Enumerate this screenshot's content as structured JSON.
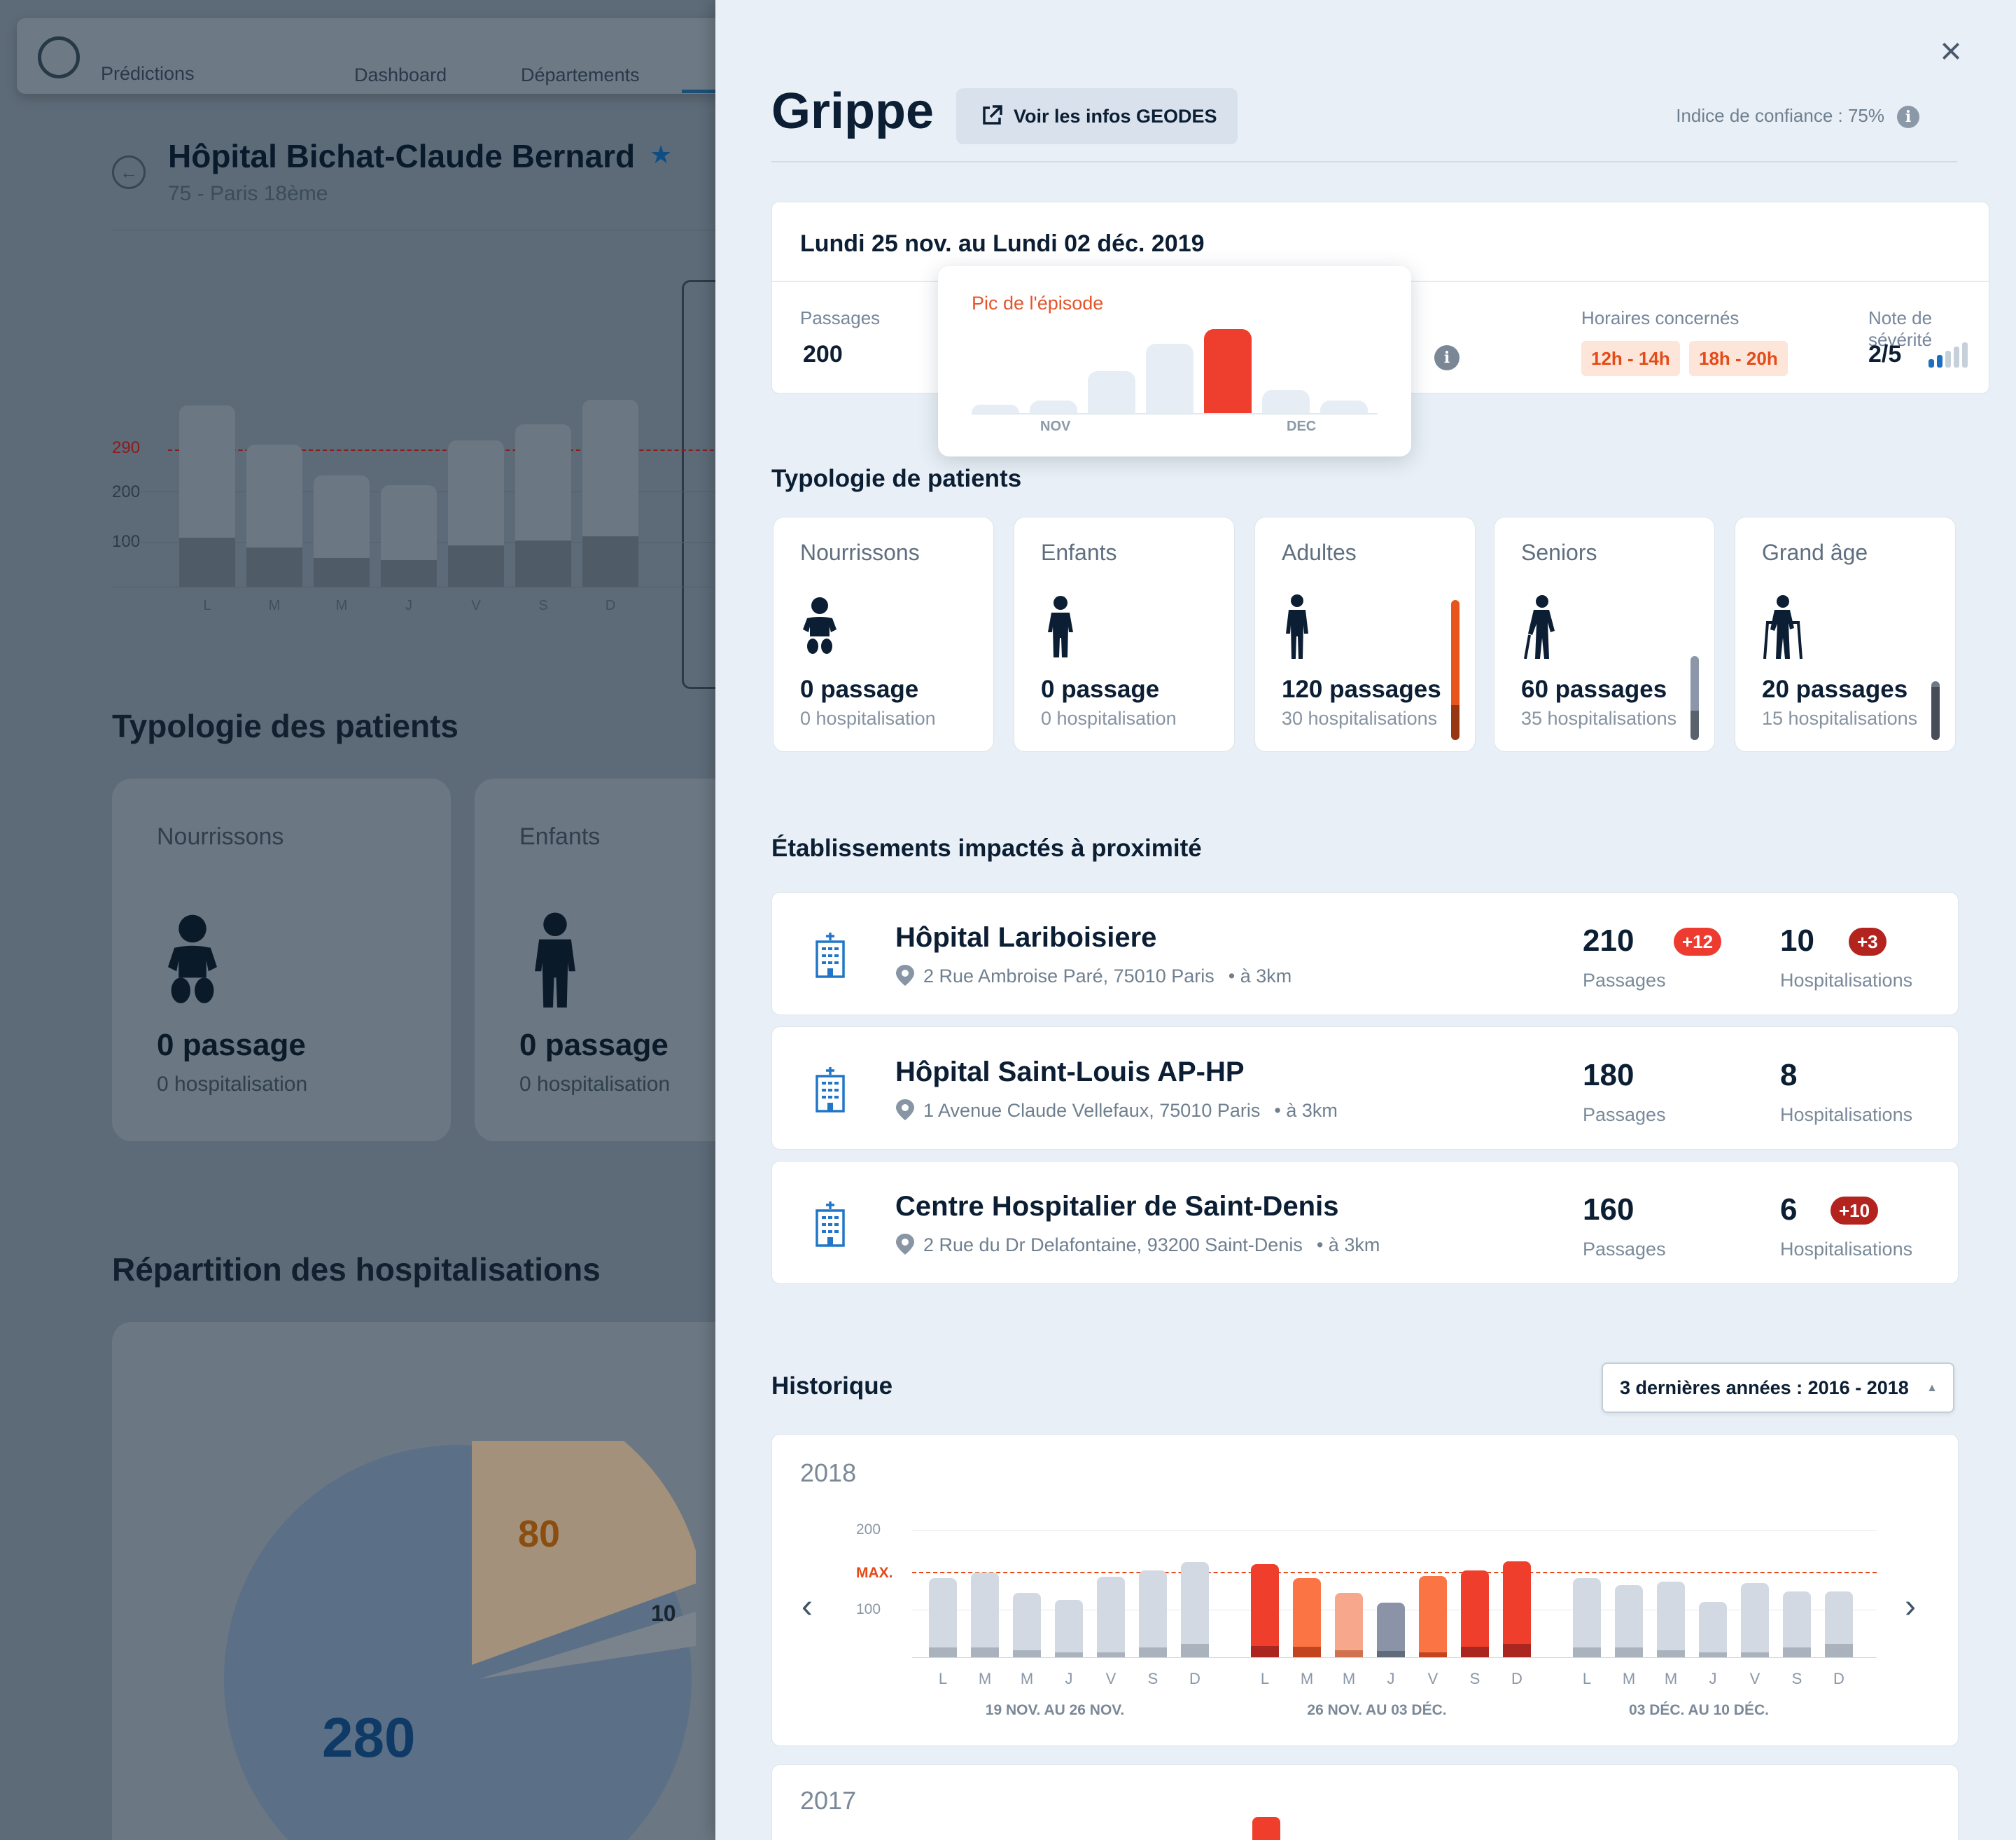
{
  "background": {
    "nav": {
      "brand": "Prédictions",
      "tabs": [
        "Dashboard",
        "Départements"
      ]
    },
    "hospital": {
      "title": "Hôpital Bichat-Claude Bernard",
      "subtitle": "75 - Paris 18ème"
    },
    "chart": {
      "type": "bar",
      "y_ticks": [
        "290",
        "200",
        "100"
      ],
      "days": [
        "L",
        "M",
        "M",
        "J",
        "V",
        "S",
        "D"
      ],
      "values": [
        316,
        248,
        194,
        177,
        255,
        283,
        326
      ],
      "hospitalisations": [
        85,
        68,
        50,
        46,
        72,
        80,
        88
      ],
      "threshold": 290
    },
    "section_patients": "Typologie des patients",
    "cards": [
      {
        "title": "Nourrissons",
        "passages": "0 passage",
        "hosp": "0 hospitalisation"
      },
      {
        "title": "Enfants",
        "passages": "0 passage",
        "hosp": "0 hospitalisation"
      }
    ],
    "section_hosp": "Répartition des hospitalisations",
    "pie": {
      "values": [
        "280",
        "80",
        "10"
      ]
    }
  },
  "panel": {
    "title": "Grippe",
    "geodes_label": "Voir les infos GEODES",
    "confidence": "Indice de confiance : 75%",
    "period": "Lundi 25 nov. au Lundi 02 déc. 2019",
    "passages_label": "Passages",
    "passages_value": "200",
    "hours_label": "Horaires concernés",
    "hours": [
      "12h - 14h",
      "18h - 20h"
    ],
    "severity_label": "Note de sévérité",
    "severity_value": "2/5",
    "severity_level": 2,
    "severity_max": 5,
    "peak_popup": {
      "title": "Pic de l'épisode",
      "months": [
        "NOV",
        "DEC"
      ],
      "values": [
        4,
        6,
        20,
        33,
        40,
        11,
        6
      ],
      "peak_index": 4
    },
    "typology_title": "Typologie de patients",
    "patients": [
      {
        "title": "Nourrissons",
        "passages": "0 passage",
        "hosp": "0 hospitalisation",
        "icon": "baby-icon",
        "level": 0,
        "share": 0
      },
      {
        "title": "Enfants",
        "passages": "0 passage",
        "hosp": "0 hospitalisation",
        "icon": "child-icon",
        "level": 0,
        "share": 0
      },
      {
        "title": "Adultes",
        "passages": "120 passages",
        "hosp": "30 hospitalisations",
        "icon": "adult-icon",
        "level": 1.0,
        "share": 0.25,
        "color": "#e9531c"
      },
      {
        "title": "Seniors",
        "passages": "60 passages",
        "hosp": "35 hospitalisations",
        "icon": "senior-icon",
        "level": 0.6,
        "share": 0.35,
        "color": "#8b97a8"
      },
      {
        "title": "Grand âge",
        "passages": "20 passages",
        "hosp": "15 hospitalisations",
        "icon": "elderly-walker-icon",
        "level": 0.42,
        "share": 0.9,
        "color": "#6e7887"
      }
    ],
    "nearby_title": "Établissements impactés à proximité",
    "establishments": [
      {
        "name": "Hôpital Lariboisiere",
        "address": "2 Rue Ambroise Paré, 75010 Paris",
        "distance": "• à 3km",
        "passages": "210",
        "passages_label": "Passages",
        "passages_delta": "+12",
        "hosp": "10",
        "hosp_label": "Hospitalisations",
        "hosp_delta": "+3"
      },
      {
        "name": "Hôpital Saint-Louis AP-HP",
        "address": "1 Avenue Claude Vellefaux, 75010 Paris",
        "distance": "• à 3km",
        "passages": "180",
        "passages_label": "Passages",
        "passages_delta": "",
        "hosp": "8",
        "hosp_label": "Hospitalisations",
        "hosp_delta": ""
      },
      {
        "name": "Centre Hospitalier de Saint-Denis",
        "address": "2 Rue du Dr Delafontaine, 93200 Saint-Denis",
        "distance": "• à 3km",
        "passages": "160",
        "passages_label": "Passages",
        "passages_delta": "",
        "hosp": "6",
        "hosp_label": "Hospitalisations",
        "hosp_delta": "+10"
      }
    ],
    "badge_colors": {
      "light": "#ee3b30",
      "dark": "#b3241f"
    },
    "history_title": "Historique",
    "history_select": "3 dernières années : 2016 - 2018",
    "history_year": "2018",
    "history_next_year": "2017"
  },
  "chart_data": {
    "type": "bar",
    "title": "2018",
    "y_ticks": [
      "200",
      "MAX.",
      "100"
    ],
    "max_value": 143,
    "ylim": [
      0,
      230
    ],
    "weeks": [
      {
        "label": "19 NOV. AU 26 NOV.",
        "days": [
          "L",
          "M",
          "M",
          "J",
          "V",
          "S",
          "D"
        ],
        "values": [
          198,
          211,
          160,
          144,
          201,
          216,
          238
        ],
        "hospitalisations": [
          25,
          25,
          17,
          13,
          13,
          25,
          33
        ],
        "colors": [
          "grey",
          "grey",
          "grey",
          "grey",
          "grey",
          "grey",
          "grey"
        ]
      },
      {
        "label": "26 NOV. AU 03 DÉC.",
        "days": [
          "L",
          "M",
          "M",
          "J",
          "V",
          "S",
          "D"
        ],
        "values": [
          233,
          197,
          160,
          137,
          203,
          217,
          239
        ],
        "hospitalisations": [
          28,
          27,
          17,
          15,
          13,
          27,
          33
        ],
        "colors": [
          "red",
          "orange",
          "salmon",
          "slate",
          "orange",
          "red",
          "red"
        ]
      },
      {
        "label": "03 DÉC. AU 10 DÉC.",
        "days": [
          "L",
          "M",
          "M",
          "J",
          "V",
          "S",
          "D"
        ],
        "values": [
          198,
          180,
          188,
          138,
          185,
          165,
          165
        ],
        "hospitalisations": [
          25,
          25,
          17,
          13,
          13,
          25,
          33
        ],
        "colors": [
          "grey",
          "grey",
          "grey",
          "grey",
          "grey",
          "grey",
          "grey"
        ]
      }
    ],
    "palette": {
      "grey": [
        "#d3d9e3",
        "#aab2be"
      ],
      "red": [
        "#ef3f2c",
        "#ab2620"
      ],
      "orange": [
        "#fb7444",
        "#c2451f"
      ],
      "salmon": [
        "#f7a88c",
        "#d0714f"
      ],
      "slate": [
        "#8b94a6",
        "#606b7c"
      ]
    }
  }
}
